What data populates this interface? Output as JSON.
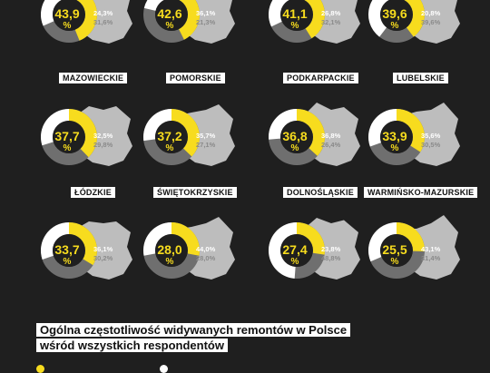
{
  "colors": {
    "background": "#1f1f1f",
    "accent": "#f7dc1e",
    "secondary": "#ffffff",
    "rest": "#6f6f6f",
    "shape": "#bdbdbd",
    "hole": "#1f1f1f"
  },
  "chart_data": {
    "type": "pie",
    "subtype": "donut",
    "unit": "%",
    "items": [
      {
        "region": "",
        "center": "43,9",
        "v1": "24,3",
        "v2": "31,6",
        "p": 43.9,
        "q": 31.6
      },
      {
        "region": "",
        "center": "42,6",
        "v1": "36,1",
        "v2": "21,3",
        "p": 42.6,
        "q": 21.3
      },
      {
        "region": "",
        "center": "41,1",
        "v1": "26,8",
        "v2": "32,1",
        "p": 41.1,
        "q": 32.1
      },
      {
        "region": "",
        "center": "39,6",
        "v1": "20,8",
        "v2": "39,6",
        "p": 39.6,
        "q": 39.6
      },
      {
        "region": "MAZOWIECKIE",
        "center": "37,7",
        "v1": "32,5",
        "v2": "29,8",
        "p": 37.7,
        "q": 29.8
      },
      {
        "region": "POMORSKIE",
        "center": "37,2",
        "v1": "35,7",
        "v2": "27,1",
        "p": 37.2,
        "q": 27.1
      },
      {
        "region": "PODKARPACKIE",
        "center": "36,8",
        "v1": "36,8",
        "v2": "26,4",
        "p": 36.8,
        "q": 26.4
      },
      {
        "region": "LUBELSKIE",
        "center": "33,9",
        "v1": "35,6",
        "v2": "30,5",
        "p": 33.9,
        "q": 30.5
      },
      {
        "region": "ŁÓDZKIE",
        "center": "33,7",
        "v1": "36,1",
        "v2": "30,2",
        "p": 33.7,
        "q": 30.2
      },
      {
        "region": "ŚWIĘTOKRZYSKIE",
        "center": "28,0",
        "v1": "44,0",
        "v2": "28,0",
        "p": 28.0,
        "q": 28.0
      },
      {
        "region": "DOLNOŚLĄSKIE",
        "center": "27,4",
        "v1": "23,8",
        "v2": "48,8",
        "p": 27.4,
        "q": 48.8
      },
      {
        "region": "WARMIŃSKO-MAZURSKIE",
        "center": "25,5",
        "v1": "43,1",
        "v2": "31,4",
        "p": 25.5,
        "q": 31.4
      }
    ]
  },
  "footer": {
    "title": "Ogólna częstotliwość widywanych remontów w Polsce wśród wszystkich respondentów"
  }
}
